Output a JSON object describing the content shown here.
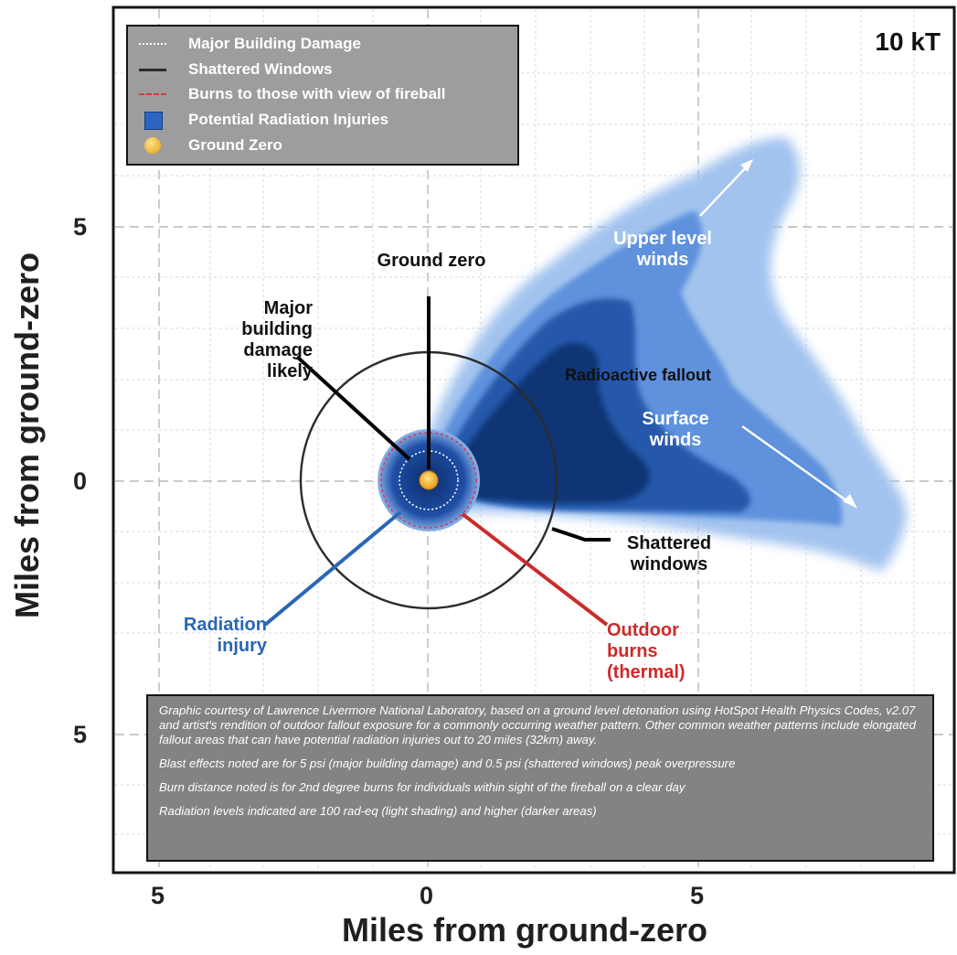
{
  "title": "10 kT",
  "axes": {
    "xlabel": "Miles from ground-zero",
    "ylabel": "Miles from ground-zero",
    "x_ticks": [
      "5",
      "0",
      "5"
    ],
    "y_ticks": [
      "5",
      "0",
      "5"
    ]
  },
  "legend": [
    {
      "label": "Major Building Damage",
      "symbol": "dotted-line"
    },
    {
      "label": "Shattered Windows",
      "symbol": "solid-line"
    },
    {
      "label": "Burns to those with view of fireball",
      "symbol": "dashed-red-line"
    },
    {
      "label": "Potential Radiation Injuries",
      "symbol": "blue-square"
    },
    {
      "label": "Ground Zero",
      "symbol": "orange-dot"
    }
  ],
  "annotations": {
    "ground_zero": "Ground zero",
    "major_damage": "Major building damage likely",
    "radioactive_fallout": "Radioactive fallout",
    "upper_winds": "Upper level winds",
    "surface_winds": "Surface winds",
    "shattered_windows": "Shattered windows",
    "radiation_injury": "Radiation injury",
    "outdoor_burns": "Outdoor burns (thermal)"
  },
  "note": [
    "Graphic courtesy of Lawrence Livermore National Laboratory, based on a ground level detonation using HotSpot Health Physics Codes, v2.07 and artist's rendition of outdoor fallout exposure for a commonly occurring weather pattern. Other common weather patterns include elongated fallout areas that can have potential radiation injuries out to 20 miles (32km) away.",
    "Blast effects noted are for 5 psi (major building damage) and 0.5 psi (shattered windows) peak overpressure",
    "Burn distance noted is for 2nd degree burns for individuals within sight of the fireball on a clear day",
    "Radiation levels indicated are 100 rad-eq (light shading) and higher (darker areas)"
  ],
  "colors": {
    "fallout_light": "#8fb6ea",
    "fallout_mid": "#4f86d8",
    "fallout_dark": "#1f4f9a",
    "burns": "#cc2b2b",
    "radiation_label": "#2a66b5",
    "ground_zero": "#f2a922"
  },
  "chart_data": {
    "type": "diagram",
    "x_range_miles": [
      -5,
      9.5
    ],
    "y_range_miles": [
      -7.5,
      9
    ],
    "radii_miles": {
      "major_building_damage": 0.55,
      "potential_radiation_injuries": 1.0,
      "outdoor_burns": 0.95,
      "shattered_windows": 2.45
    }
  }
}
